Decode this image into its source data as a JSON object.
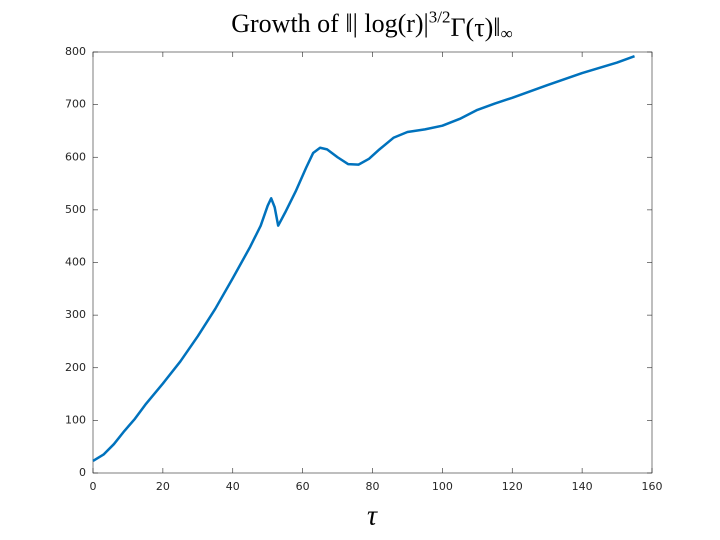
{
  "chart_data": {
    "type": "line",
    "title": [
      "Growth of ‖| log(r)|",
      "3/2",
      "Γ(τ)‖",
      "∞"
    ],
    "xlabel": "τ",
    "x": [
      0,
      3,
      6,
      9,
      12,
      15,
      20,
      25,
      30,
      35,
      40,
      45,
      48,
      50,
      51,
      52,
      53,
      55,
      58,
      61,
      63,
      65,
      67,
      70,
      73,
      76,
      79,
      82,
      86,
      90,
      95,
      100,
      105,
      110,
      115,
      120,
      130,
      140,
      150,
      155
    ],
    "series": [
      {
        "color": "#0072bd",
        "values": [
          23,
          35,
          55,
          80,
          103,
          130,
          170,
          212,
          260,
          312,
          370,
          430,
          470,
          508,
          522,
          505,
          470,
          495,
          535,
          580,
          608,
          618,
          615,
          600,
          587,
          586,
          597,
          615,
          637,
          648,
          653,
          660,
          673,
          690,
          702,
          713,
          737,
          760,
          780,
          792
        ]
      }
    ],
    "xlim": [
      0,
      160
    ],
    "ylim": [
      0,
      800
    ],
    "xticks": [
      0,
      20,
      40,
      60,
      80,
      100,
      120,
      140,
      160
    ],
    "yticks": [
      0,
      100,
      200,
      300,
      400,
      500,
      600,
      700,
      800
    ],
    "grid": false
  }
}
